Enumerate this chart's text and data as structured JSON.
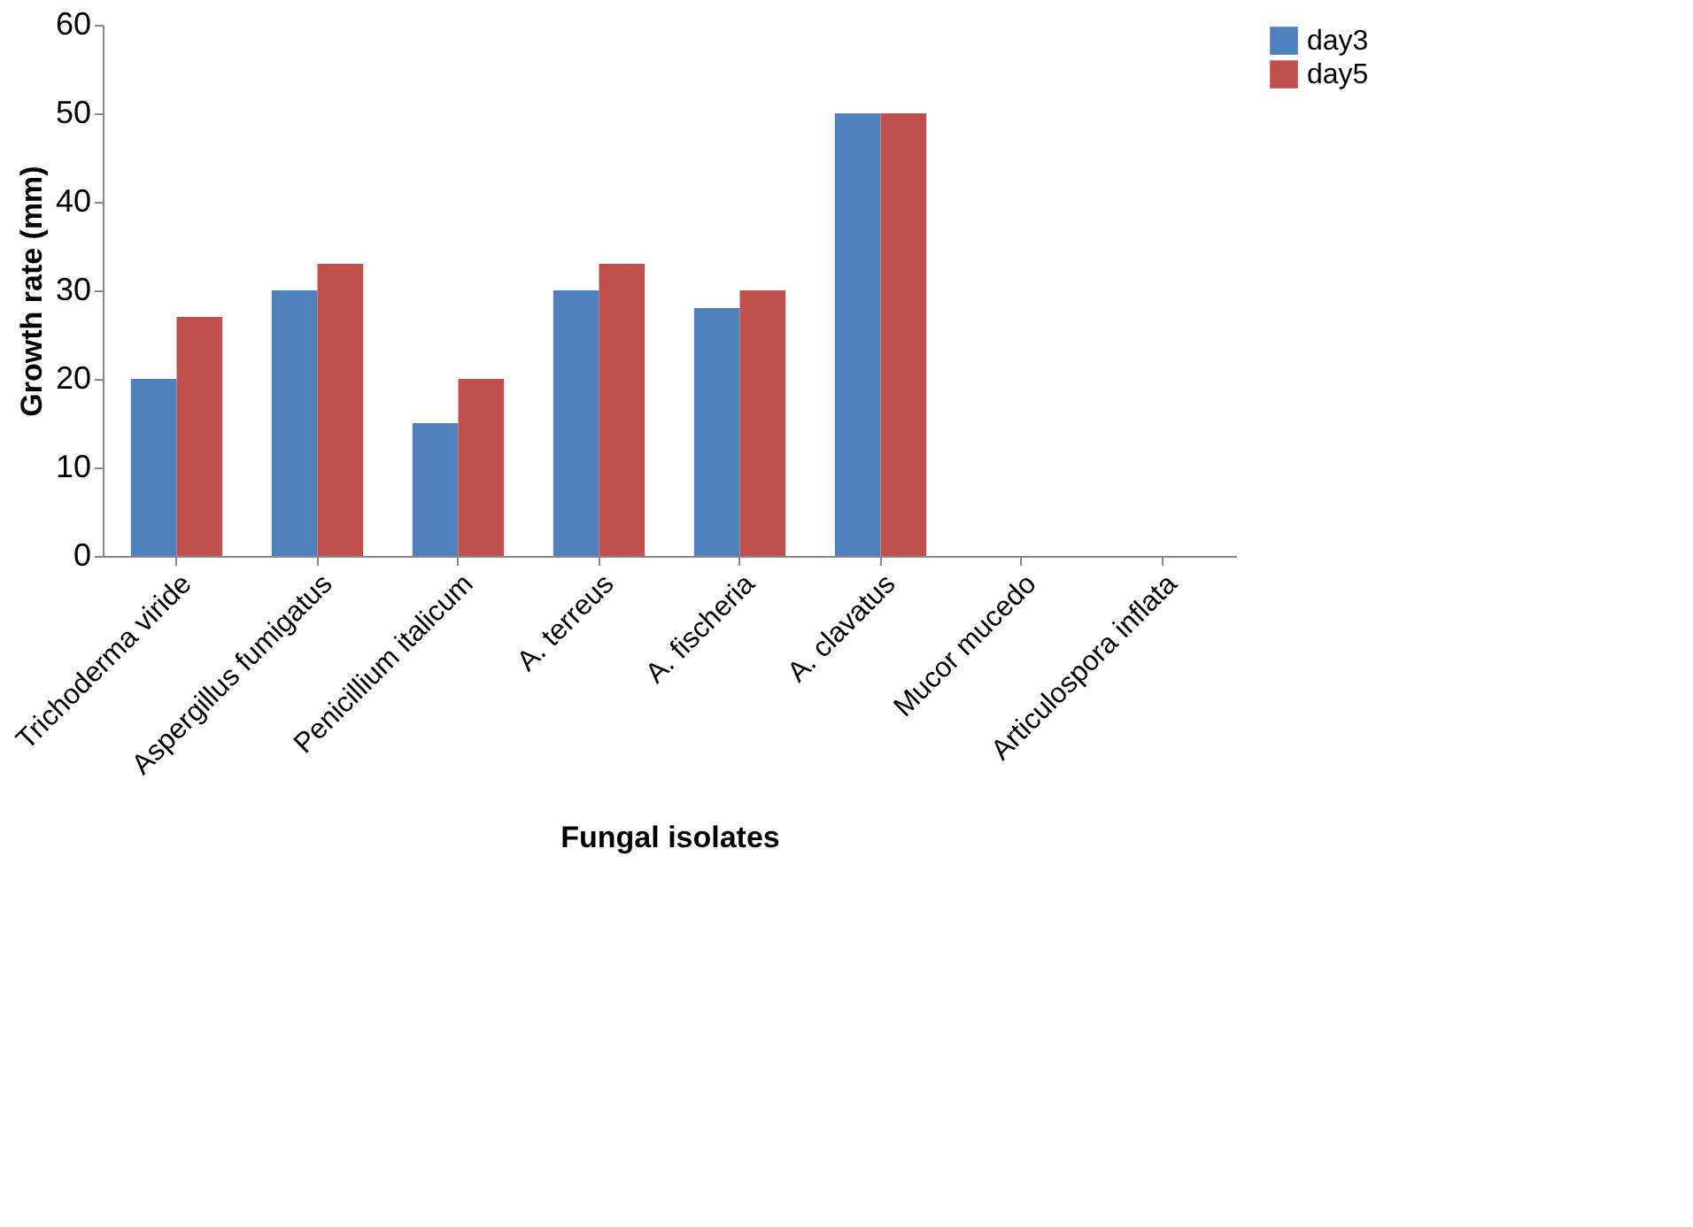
{
  "chart_data": {
    "type": "bar",
    "xlabel": "Fungal isolates",
    "ylabel": "Growth rate (mm)",
    "categories": [
      "Trichoderma viride",
      "Aspergillus fumigatus",
      "Penicillium italicum",
      "A. terreus",
      "A. fischeria",
      "A. clavatus",
      "Mucor mucedo",
      "Articulospora inflata"
    ],
    "series": [
      {
        "name": "day3",
        "color": "#4f81bd",
        "values": [
          20,
          30,
          15,
          30,
          28,
          50,
          0,
          0
        ]
      },
      {
        "name": "day5",
        "color": "#c0504d",
        "values": [
          27,
          33,
          20,
          33,
          30,
          50,
          0,
          0
        ]
      }
    ],
    "ylim": [
      0,
      60
    ],
    "yticks": [
      0,
      10,
      20,
      30,
      40,
      50,
      60
    ],
    "grid": false,
    "legend": "right"
  }
}
